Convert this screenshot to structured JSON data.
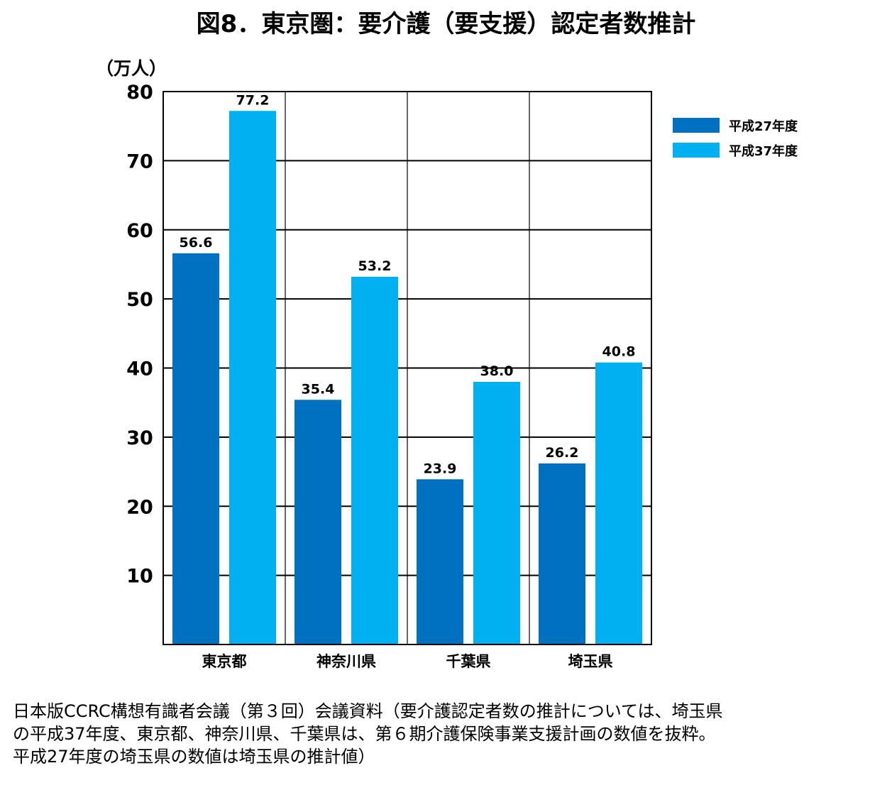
{
  "chart_data": {
    "type": "bar",
    "title": "図8．東京圏：要介護（要支援）認定者数推計",
    "ylabel": "（万人）",
    "xlabel": "",
    "categories": [
      "東京都",
      "神奈川県",
      "千葉県",
      "埼玉県"
    ],
    "series": [
      {
        "name": "平成27年度",
        "values": [
          56.6,
          35.4,
          23.9,
          26.2
        ],
        "color": "#0070C0"
      },
      {
        "name": "平成37年度",
        "values": [
          77.2,
          53.2,
          38.0,
          40.8
        ],
        "color": "#00B0F0"
      }
    ],
    "value_labels": [
      [
        "56.6",
        "35.4",
        "23.9",
        "26.2"
      ],
      [
        "77.2",
        "53.2",
        "38.0",
        "40.8"
      ]
    ],
    "ylim": [
      0,
      80
    ],
    "yticks": [
      10,
      20,
      30,
      40,
      50,
      60,
      70,
      80
    ],
    "grid": true,
    "legend_position": "top-right"
  },
  "note": {
    "lines": [
      "日本版CCRC構想有識者会議（第３回）会議資料（要介護認定者数の推計については、埼玉県",
      "の平成37年度、東京都、神奈川県、千葉県は、第６期介護保険事業支援計画の数値を抜粋。",
      "平成27年度の埼玉県の数値は埼玉県の推計値）"
    ]
  }
}
